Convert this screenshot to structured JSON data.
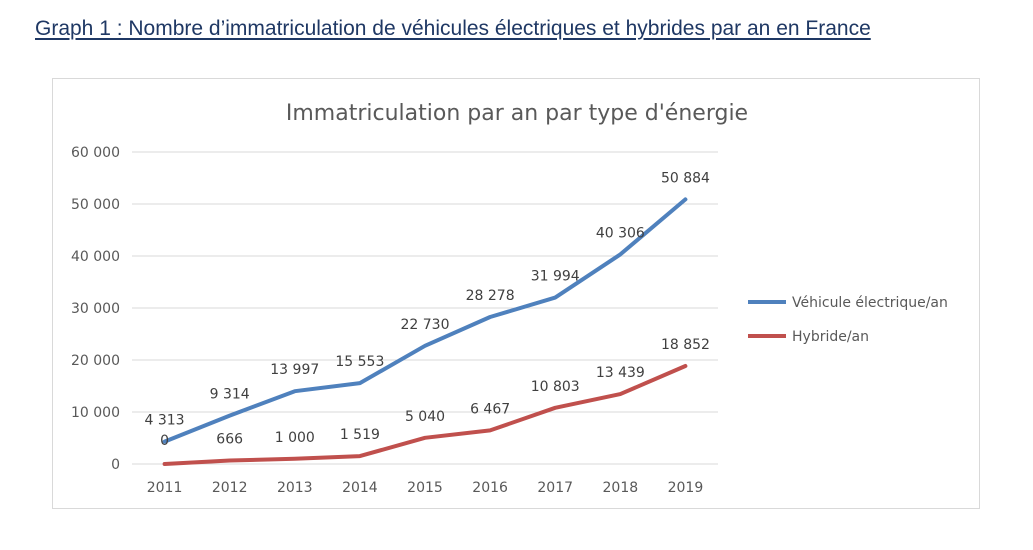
{
  "heading": "Graph 1 : Nombre d’immatriculation de véhicules électriques et hybrides par an en France",
  "chart_data": {
    "type": "line",
    "title": "Immatriculation par an par type d'énergie",
    "xlabel": "",
    "ylabel": "",
    "categories": [
      "2011",
      "2012",
      "2013",
      "2014",
      "2015",
      "2016",
      "2017",
      "2018",
      "2019"
    ],
    "ylim": [
      0,
      60000
    ],
    "yticks": [
      0,
      10000,
      20000,
      30000,
      40000,
      50000,
      60000
    ],
    "ytick_labels": [
      "0",
      "10 000",
      "20 000",
      "30 000",
      "40 000",
      "50 000",
      "60 000"
    ],
    "grid": true,
    "legend_position": "right",
    "series": [
      {
        "name": "Véhicule électrique/an",
        "color": "#4f81bd",
        "values": [
          4313,
          9314,
          13997,
          15553,
          22730,
          28278,
          31994,
          40306,
          50884
        ],
        "labels": [
          "4 313",
          "9 314",
          "13 997",
          "15 553",
          "22 730",
          "28 278",
          "31 994",
          "40 306",
          "50 884"
        ]
      },
      {
        "name": "Hybride/an",
        "color": "#c0504d",
        "values": [
          0,
          666,
          1000,
          1519,
          5040,
          6467,
          10803,
          13439,
          18852
        ],
        "labels": [
          "0",
          "666",
          "1 000",
          "1 519",
          "5 040",
          "6 467",
          "10 803",
          "13 439",
          "18 852"
        ]
      }
    ]
  }
}
